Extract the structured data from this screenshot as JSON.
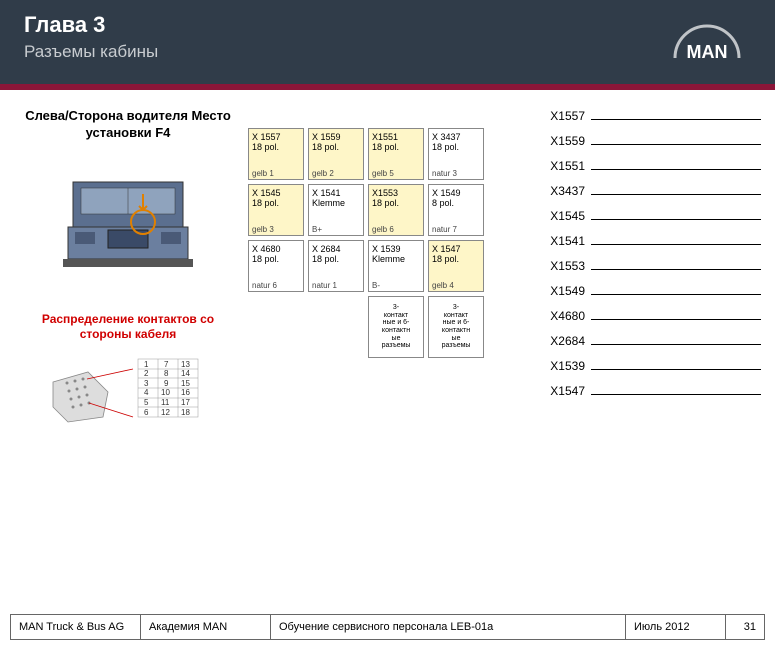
{
  "header": {
    "chapter": "Глава 3",
    "subtitle": "Разъемы кабины",
    "logo_text": "MAN"
  },
  "left": {
    "title": "Слева/Сторона водителя Место установки F4",
    "red_caption": "Распределение контактов со стороны кабеля"
  },
  "grid": {
    "rows": [
      [
        {
          "id": "X 1557",
          "pol": "18 pol.",
          "lbl": "gelb 1",
          "yellow": true
        },
        {
          "id": "X 1559",
          "pol": "18 pol.",
          "lbl": "gelb 2",
          "yellow": true
        },
        {
          "id": "X1551",
          "pol": "18 pol.",
          "lbl": "gelb 5",
          "yellow": true
        },
        {
          "id": "X 3437",
          "pol": "18 pol.",
          "lbl": "natur 3",
          "yellow": false
        }
      ],
      [
        {
          "id": "X 1545",
          "pol": "18 pol.",
          "lbl": "gelb 3",
          "yellow": true
        },
        {
          "id": "X 1541",
          "pol": "Klemme",
          "lbl": "B+",
          "yellow": false
        },
        {
          "id": "X1553",
          "pol": "18 pol.",
          "lbl": "gelb 6",
          "yellow": true
        },
        {
          "id": "X 1549",
          "pol": "8 pol.",
          "lbl": "natur 7",
          "yellow": false
        }
      ],
      [
        {
          "id": "X 4680",
          "pol": "18 pol.",
          "lbl": "natur 6",
          "yellow": false
        },
        {
          "id": "X 2684",
          "pol": "18 pol.",
          "lbl": "natur 1",
          "yellow": false
        },
        {
          "id": "X 1539",
          "pol": "Klemme",
          "lbl": "B-",
          "yellow": false
        },
        {
          "id": "X 1547",
          "pol": "18 pol.",
          "lbl": "gelb 4",
          "yellow": true
        }
      ]
    ],
    "small_text": "3-\nконтакт\nные и 6-\nконтактн\nые\nразъемы"
  },
  "list": [
    "X1557",
    "X1559",
    "X1551",
    "X3437",
    "X1545",
    "X1541",
    "X1553",
    "X1549",
    "X4680",
    "X2684",
    "X1539",
    "X1547"
  ],
  "pin_table": [
    [
      "1",
      "7",
      "13"
    ],
    [
      "2",
      "8",
      "14"
    ],
    [
      "3",
      "9",
      "15"
    ],
    [
      "4",
      "10",
      "16"
    ],
    [
      "5",
      "11",
      "17"
    ],
    [
      "6",
      "12",
      "18"
    ]
  ],
  "footer": {
    "company": "MAN Truck & Bus AG",
    "academy": "Академия MAN",
    "course": "Обучение сервисного персонала LEB-01a",
    "date": "Июль 2012",
    "page": "31"
  },
  "colors": {
    "header_bg": "#303c49",
    "accent": "#8b1538",
    "yellow_cell": "#fef6c8",
    "red_text": "#d00000",
    "truck_body": "#5b6f8f",
    "truck_glass": "#8fa3bd"
  }
}
